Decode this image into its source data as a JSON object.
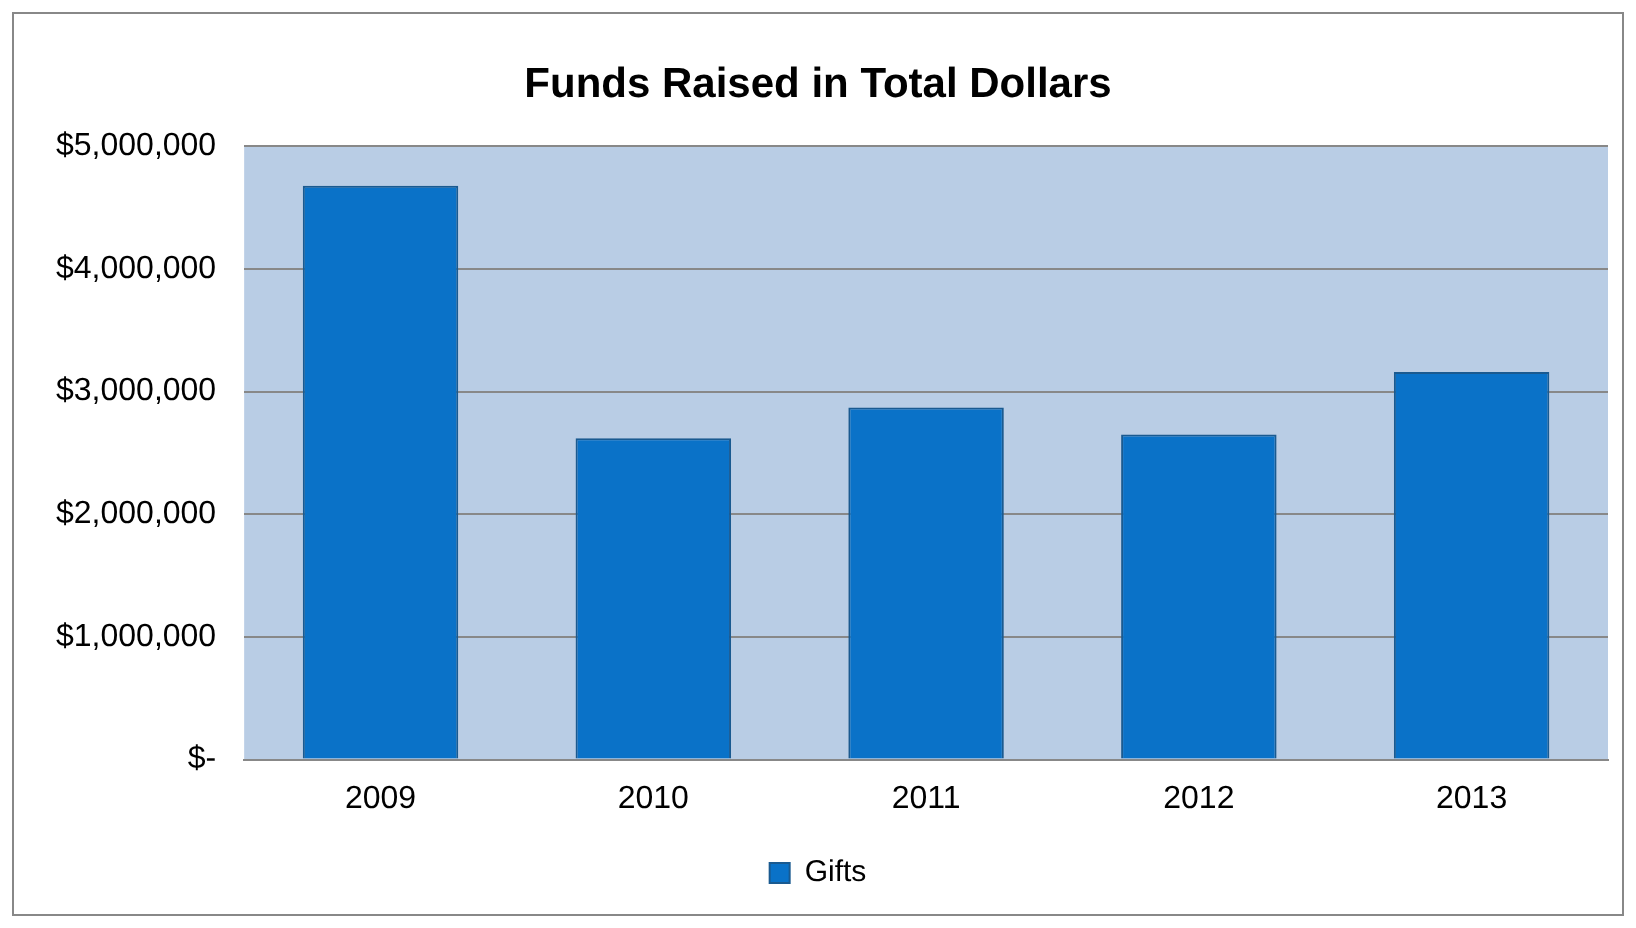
{
  "chart_data": {
    "type": "bar",
    "title": "Funds Raised in Total Dollars",
    "categories": [
      "2009",
      "2010",
      "2011",
      "2012",
      "2013"
    ],
    "series": [
      {
        "name": "Gifts",
        "color": "#0a72c8",
        "values": [
          4680000,
          2620000,
          2870000,
          2650000,
          3160000
        ]
      }
    ],
    "ylim": [
      0,
      5000000
    ],
    "yticks": [
      {
        "value": 0,
        "label": "$-"
      },
      {
        "value": 1000000,
        "label": "$1,000,000"
      },
      {
        "value": 2000000,
        "label": "$2,000,000"
      },
      {
        "value": 3000000,
        "label": "$3,000,000"
      },
      {
        "value": 4000000,
        "label": "$4,000,000"
      },
      {
        "value": 5000000,
        "label": "$5,000,000"
      }
    ],
    "grid": "y",
    "legend": "bottom"
  }
}
